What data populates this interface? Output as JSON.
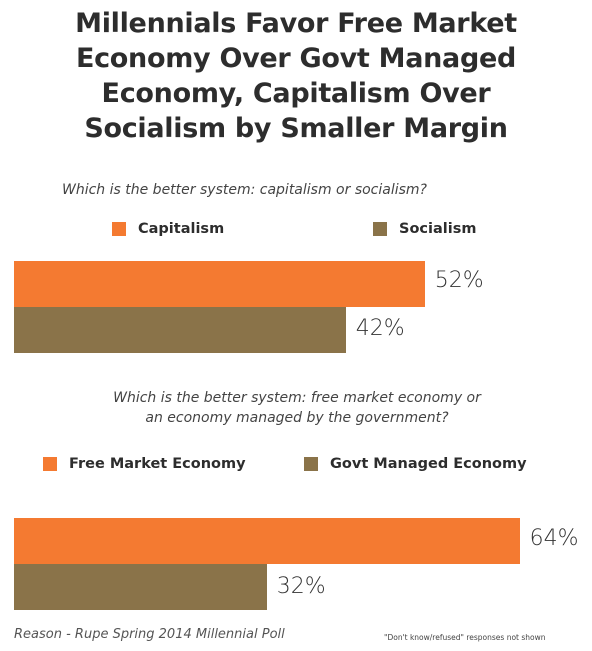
{
  "title_lines": [
    "Millennials Favor Free Market",
    "Economy Over Govt Managed",
    "Economy, Capitalism Over",
    "Socialism by Smaller Margin"
  ],
  "colors": {
    "primary": "#F47A31",
    "secondary": "#8A7349"
  },
  "chart_data": [
    {
      "type": "bar",
      "orientation": "horizontal",
      "title": "Which is the better system: capitalism or socialism?",
      "categories": [
        "Capitalism",
        "Socialism"
      ],
      "values": [
        52,
        42
      ],
      "value_labels": [
        "52%",
        "42%"
      ],
      "legend": [
        "Capitalism",
        "Socialism"
      ],
      "xlim": [
        0,
        100
      ],
      "grid": false
    },
    {
      "type": "bar",
      "orientation": "horizontal",
      "title_lines": [
        "Which is the better system: free market economy or",
        "an economy managed by the government?"
      ],
      "categories": [
        "Free Market Economy",
        "Govt Managed Economy"
      ],
      "values": [
        64,
        32
      ],
      "value_labels": [
        "64%",
        "32%"
      ],
      "legend": [
        "Free Market Economy",
        "Govt Managed Economy"
      ],
      "xlim": [
        0,
        100
      ],
      "grid": false
    }
  ],
  "source": "Reason - Rupe Spring 2014 Millennial Poll",
  "note": "\"Don't know/refused\" responses not shown"
}
